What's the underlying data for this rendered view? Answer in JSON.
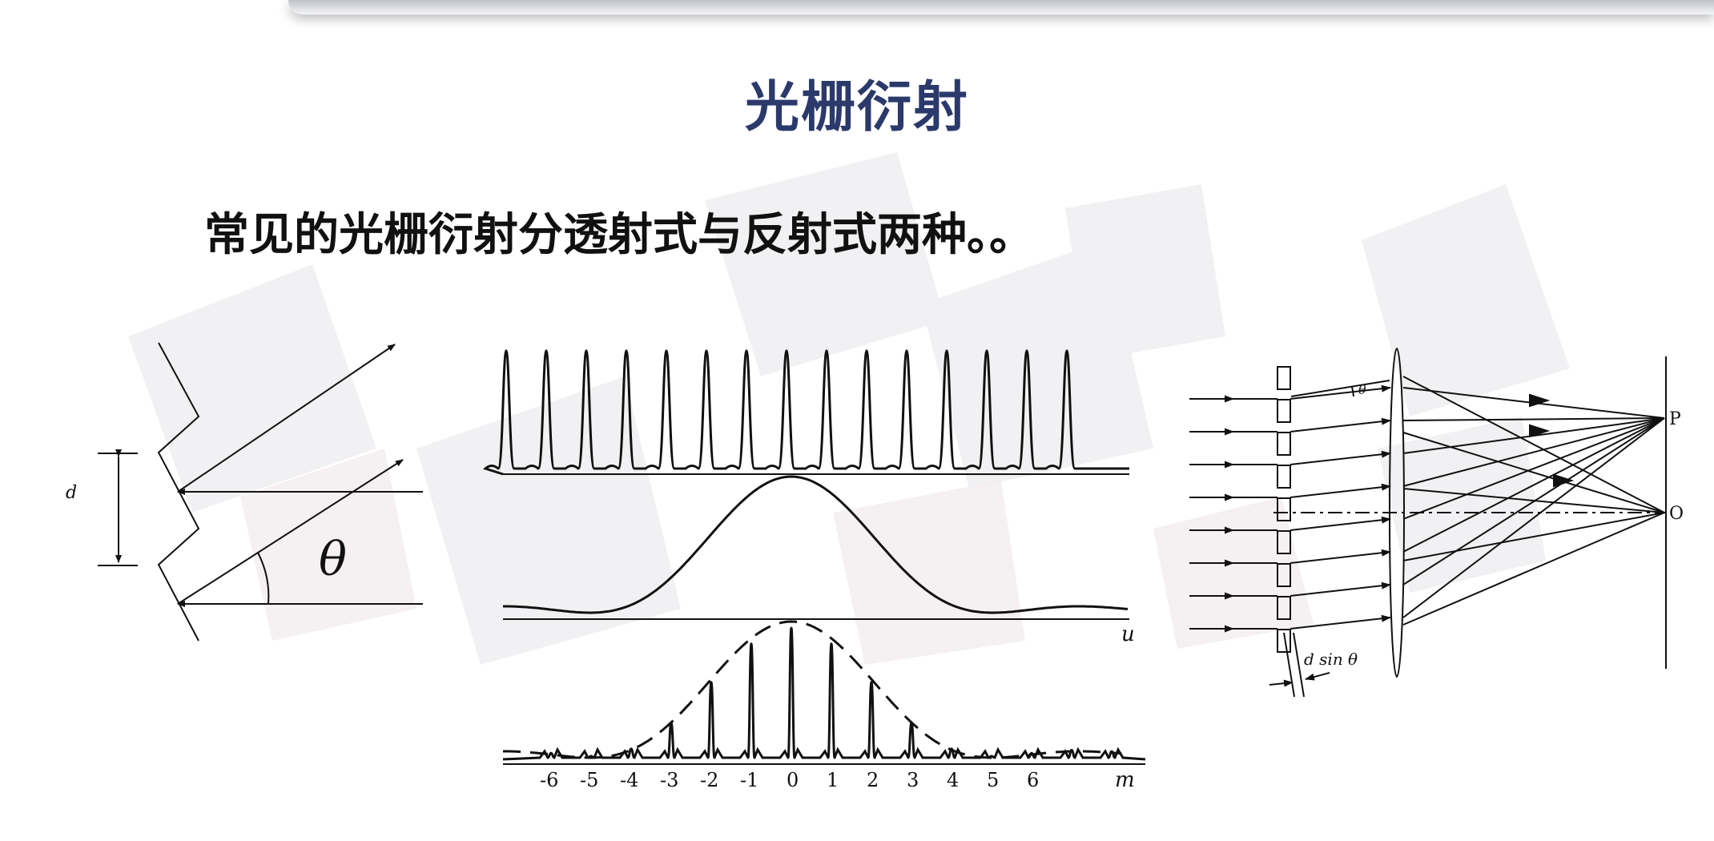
{
  "slide": {
    "title": "光栅衍射",
    "subtitle": "常见的光栅衍射分透射式与反射式两种。。"
  },
  "figure_left": {
    "spacing_label": "d",
    "angle_label": "θ"
  },
  "figure_middle": {
    "axis_u_label": "u",
    "axis_m_label": "m",
    "order_labels": [
      "-6",
      "-5",
      "-4",
      "-3",
      "-2",
      "-1",
      "0",
      "1",
      "2",
      "3",
      "4",
      "5",
      "6"
    ]
  },
  "figure_right": {
    "angle_label": "θ",
    "path_difference_label": "d sin θ",
    "point_p_label": "P",
    "point_o_label": "O"
  },
  "colors": {
    "title": "#2b3a6b",
    "text": "#111111",
    "line": "#111111",
    "decor": "#e9e9ec"
  }
}
